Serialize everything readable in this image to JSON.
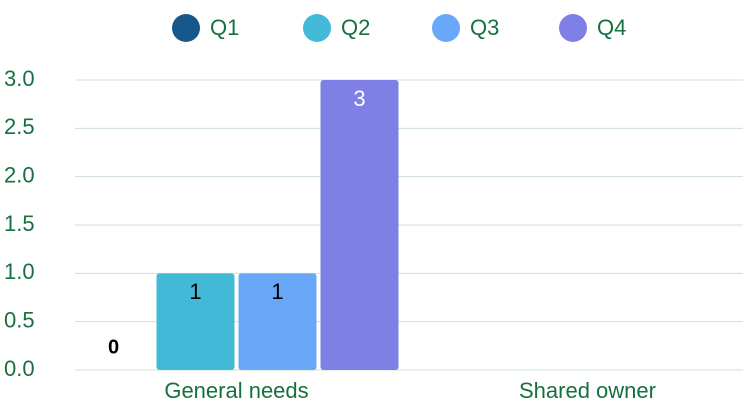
{
  "chart_data": {
    "type": "bar",
    "categories": [
      "General needs",
      "Shared owner"
    ],
    "series": [
      {
        "name": "Q1",
        "color": "#17588c",
        "values": [
          0,
          null
        ]
      },
      {
        "name": "Q2",
        "color": "#42b9d6",
        "values": [
          1,
          null
        ]
      },
      {
        "name": "Q3",
        "color": "#69a8f8",
        "values": [
          1,
          null
        ]
      },
      {
        "name": "Q4",
        "color": "#7f80e6",
        "values": [
          3,
          null
        ]
      }
    ],
    "ylim": [
      0,
      3
    ],
    "yticks": [
      {
        "value": 0,
        "label": "0.0"
      },
      {
        "value": 0.5,
        "label": "0.5"
      },
      {
        "value": 1,
        "label": "1.0"
      },
      {
        "value": 1.5,
        "label": "1.5"
      },
      {
        "value": 2,
        "label": "2.0"
      },
      {
        "value": 2.5,
        "label": "2.5"
      },
      {
        "value": 3,
        "label": "3.0"
      }
    ],
    "grid": true,
    "legend": "top"
  }
}
